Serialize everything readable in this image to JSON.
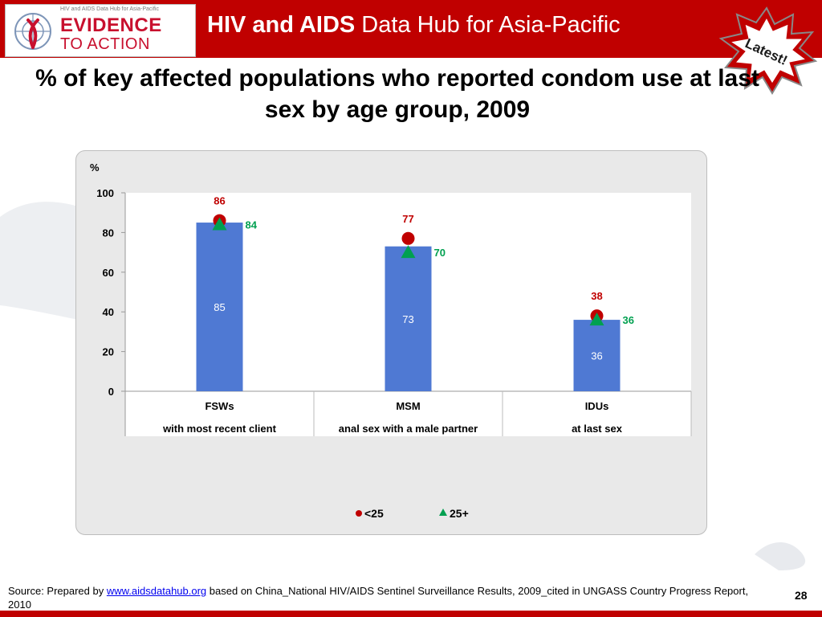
{
  "header": {
    "logo_top_text": "HIV and AIDS Data Hub for Asia-Pacific",
    "logo_line1": "EVIDENCE",
    "logo_line2": "TO ACTION",
    "title_bold": "HIV and AIDS",
    "title_rest": " Data Hub for Asia-Pacific",
    "badge_text": "Latest!"
  },
  "slide": {
    "title": "% of key affected populations who reported condom use at last sex by age group, 2009",
    "number": "28"
  },
  "footer": {
    "prefix": "Source: Prepared by ",
    "link": "www.aidsdatahub.org",
    "rest": "  based on China_National HIV/AIDS Sentinel Surveillance Results, 2009_cited in UNGASS Country Progress Report, 2010"
  },
  "colors": {
    "header_red": "#c00000",
    "bar_blue": "#4f79d3",
    "under25_red": "#c00000",
    "over25_green": "#00a050"
  },
  "chart_data": {
    "type": "bar",
    "ylabel": "%",
    "ylim": [
      0,
      100
    ],
    "yticks": [
      0,
      20,
      40,
      60,
      80,
      100
    ],
    "grid": false,
    "categories": [
      "FSWs",
      "MSM",
      "IDUs"
    ],
    "category_sublabels": [
      "with most recent client",
      "anal sex with a male partner",
      "at last sex"
    ],
    "bars": {
      "values": [
        85,
        73,
        36
      ]
    },
    "series": [
      {
        "name": "<25",
        "marker": "circle",
        "values": [
          86,
          77,
          38
        ]
      },
      {
        "name": "25+",
        "marker": "triangle",
        "values": [
          84,
          70,
          36
        ]
      }
    ],
    "legend_position": "bottom"
  }
}
